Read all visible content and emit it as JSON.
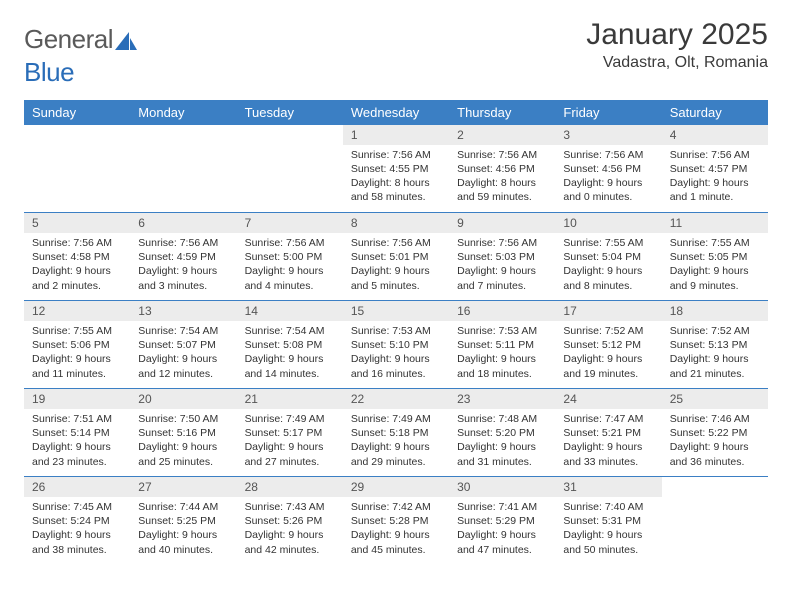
{
  "brand": {
    "part1": "General",
    "part2": "Blue"
  },
  "title": "January 2025",
  "location": "Vadastra, Olt, Romania",
  "header_bg": "#3b7fc4",
  "daynum_bg": "#ececec",
  "border_color": "#3b7fc4",
  "text_color": "#333333",
  "dayHeaders": [
    "Sunday",
    "Monday",
    "Tuesday",
    "Wednesday",
    "Thursday",
    "Friday",
    "Saturday"
  ],
  "weeks": [
    [
      null,
      null,
      null,
      {
        "n": "1",
        "sr": "7:56 AM",
        "ss": "4:55 PM",
        "dl": "8 hours and 58 minutes."
      },
      {
        "n": "2",
        "sr": "7:56 AM",
        "ss": "4:56 PM",
        "dl": "8 hours and 59 minutes."
      },
      {
        "n": "3",
        "sr": "7:56 AM",
        "ss": "4:56 PM",
        "dl": "9 hours and 0 minutes."
      },
      {
        "n": "4",
        "sr": "7:56 AM",
        "ss": "4:57 PM",
        "dl": "9 hours and 1 minute."
      }
    ],
    [
      {
        "n": "5",
        "sr": "7:56 AM",
        "ss": "4:58 PM",
        "dl": "9 hours and 2 minutes."
      },
      {
        "n": "6",
        "sr": "7:56 AM",
        "ss": "4:59 PM",
        "dl": "9 hours and 3 minutes."
      },
      {
        "n": "7",
        "sr": "7:56 AM",
        "ss": "5:00 PM",
        "dl": "9 hours and 4 minutes."
      },
      {
        "n": "8",
        "sr": "7:56 AM",
        "ss": "5:01 PM",
        "dl": "9 hours and 5 minutes."
      },
      {
        "n": "9",
        "sr": "7:56 AM",
        "ss": "5:03 PM",
        "dl": "9 hours and 7 minutes."
      },
      {
        "n": "10",
        "sr": "7:55 AM",
        "ss": "5:04 PM",
        "dl": "9 hours and 8 minutes."
      },
      {
        "n": "11",
        "sr": "7:55 AM",
        "ss": "5:05 PM",
        "dl": "9 hours and 9 minutes."
      }
    ],
    [
      {
        "n": "12",
        "sr": "7:55 AM",
        "ss": "5:06 PM",
        "dl": "9 hours and 11 minutes."
      },
      {
        "n": "13",
        "sr": "7:54 AM",
        "ss": "5:07 PM",
        "dl": "9 hours and 12 minutes."
      },
      {
        "n": "14",
        "sr": "7:54 AM",
        "ss": "5:08 PM",
        "dl": "9 hours and 14 minutes."
      },
      {
        "n": "15",
        "sr": "7:53 AM",
        "ss": "5:10 PM",
        "dl": "9 hours and 16 minutes."
      },
      {
        "n": "16",
        "sr": "7:53 AM",
        "ss": "5:11 PM",
        "dl": "9 hours and 18 minutes."
      },
      {
        "n": "17",
        "sr": "7:52 AM",
        "ss": "5:12 PM",
        "dl": "9 hours and 19 minutes."
      },
      {
        "n": "18",
        "sr": "7:52 AM",
        "ss": "5:13 PM",
        "dl": "9 hours and 21 minutes."
      }
    ],
    [
      {
        "n": "19",
        "sr": "7:51 AM",
        "ss": "5:14 PM",
        "dl": "9 hours and 23 minutes."
      },
      {
        "n": "20",
        "sr": "7:50 AM",
        "ss": "5:16 PM",
        "dl": "9 hours and 25 minutes."
      },
      {
        "n": "21",
        "sr": "7:49 AM",
        "ss": "5:17 PM",
        "dl": "9 hours and 27 minutes."
      },
      {
        "n": "22",
        "sr": "7:49 AM",
        "ss": "5:18 PM",
        "dl": "9 hours and 29 minutes."
      },
      {
        "n": "23",
        "sr": "7:48 AM",
        "ss": "5:20 PM",
        "dl": "9 hours and 31 minutes."
      },
      {
        "n": "24",
        "sr": "7:47 AM",
        "ss": "5:21 PM",
        "dl": "9 hours and 33 minutes."
      },
      {
        "n": "25",
        "sr": "7:46 AM",
        "ss": "5:22 PM",
        "dl": "9 hours and 36 minutes."
      }
    ],
    [
      {
        "n": "26",
        "sr": "7:45 AM",
        "ss": "5:24 PM",
        "dl": "9 hours and 38 minutes."
      },
      {
        "n": "27",
        "sr": "7:44 AM",
        "ss": "5:25 PM",
        "dl": "9 hours and 40 minutes."
      },
      {
        "n": "28",
        "sr": "7:43 AM",
        "ss": "5:26 PM",
        "dl": "9 hours and 42 minutes."
      },
      {
        "n": "29",
        "sr": "7:42 AM",
        "ss": "5:28 PM",
        "dl": "9 hours and 45 minutes."
      },
      {
        "n": "30",
        "sr": "7:41 AM",
        "ss": "5:29 PM",
        "dl": "9 hours and 47 minutes."
      },
      {
        "n": "31",
        "sr": "7:40 AM",
        "ss": "5:31 PM",
        "dl": "9 hours and 50 minutes."
      },
      null
    ]
  ],
  "labels": {
    "sunrise": "Sunrise:",
    "sunset": "Sunset:",
    "daylight": "Daylight:"
  }
}
